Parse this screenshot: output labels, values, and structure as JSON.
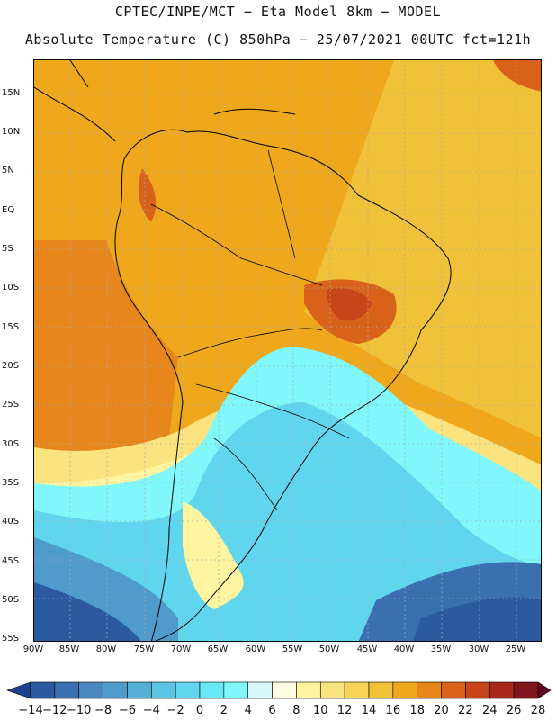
{
  "header": {
    "line1": "CPTEC/INPE/MCT −  Eta Model 8km − MODEL",
    "line2": "Absolute Temperature (C) 850hPa − 25/07/2021 00UTC fct=121h"
  },
  "axes": {
    "lat_labels": [
      "15N",
      "10N",
      "5N",
      "EQ",
      "5S",
      "10S",
      "15S",
      "20S",
      "25S",
      "30S",
      "35S",
      "40S",
      "45S",
      "50S",
      "55S"
    ],
    "lon_labels": [
      "90W",
      "85W",
      "80W",
      "75W",
      "70W",
      "65W",
      "60W",
      "55W",
      "50W",
      "45W",
      "40W",
      "35W",
      "30W",
      "25W"
    ]
  },
  "colorbar": {
    "ticks": [
      "−14",
      "−12",
      "−10",
      "−8",
      "−6",
      "−4",
      "−2",
      "0",
      "2",
      "4",
      "6",
      "8",
      "10",
      "12",
      "14",
      "16",
      "18",
      "20",
      "22",
      "24",
      "26",
      "28"
    ],
    "colors": [
      "#1f3f8f",
      "#2c5aa0",
      "#3a6fb0",
      "#4a86c0",
      "#4f9bcc",
      "#55b0d8",
      "#5cc4e3",
      "#5fd6ee",
      "#66e8f5",
      "#7ff7fb",
      "#d6f7fb",
      "#fffbe0",
      "#fff4a0",
      "#fbe480",
      "#f7d356",
      "#f2c13a",
      "#efa81b",
      "#e6861b",
      "#d9621a",
      "#c6461a",
      "#a8291a",
      "#80161c",
      "#66001e"
    ]
  }
}
